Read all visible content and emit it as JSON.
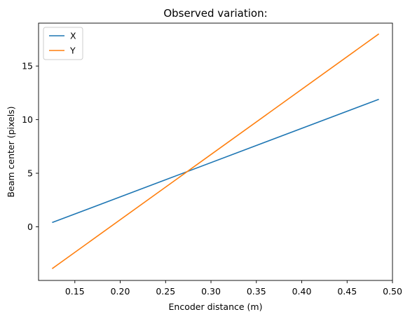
{
  "chart_data": {
    "type": "line",
    "title": "Observed variation:",
    "xlabel": "Encoder distance (m)",
    "ylabel": "Beam center (pixels)",
    "xlim": [
      0.11,
      0.5
    ],
    "ylim": [
      -5,
      19
    ],
    "xticks": [
      0.15,
      0.2,
      0.25,
      0.3,
      0.35,
      0.4,
      0.45,
      0.5
    ],
    "xtick_labels": [
      "0.15",
      "0.20",
      "0.25",
      "0.30",
      "0.35",
      "0.40",
      "0.45",
      "0.50"
    ],
    "yticks": [
      0,
      5,
      10,
      15
    ],
    "ytick_labels": [
      "0",
      "5",
      "10",
      "15"
    ],
    "grid": false,
    "legend_position": "top-left",
    "series": [
      {
        "name": "X",
        "color": "#1f77b4",
        "x": [
          0.125,
          0.485
        ],
        "y": [
          0.4,
          11.9
        ]
      },
      {
        "name": "Y",
        "color": "#ff7f0e",
        "x": [
          0.125,
          0.485
        ],
        "y": [
          -3.9,
          18.0
        ]
      }
    ]
  }
}
